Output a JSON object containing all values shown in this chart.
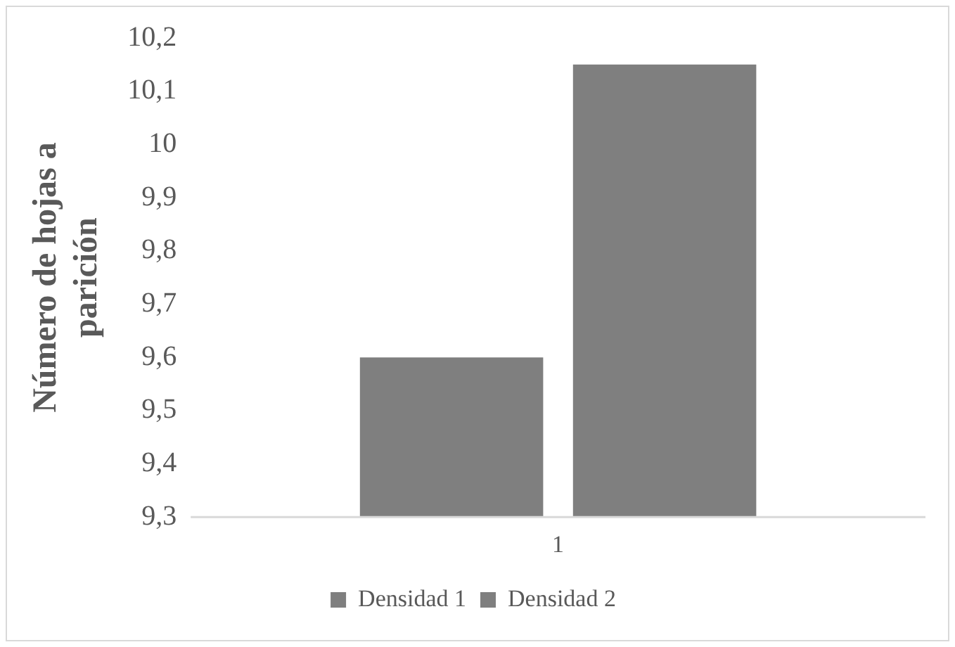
{
  "chart_data": {
    "type": "bar",
    "ylabel": "Número de hojas a parición",
    "categories": [
      "1"
    ],
    "series": [
      {
        "name": "Densidad 1",
        "color": "#7f7f7f",
        "values": [
          9.6
        ]
      },
      {
        "name": "Densidad 2",
        "color": "#7f7f7f",
        "values": [
          10.15
        ]
      }
    ],
    "ylim": [
      9.3,
      10.2
    ],
    "yticks": [
      {
        "value": 9.3,
        "label": "9,3"
      },
      {
        "value": 9.4,
        "label": "9,4"
      },
      {
        "value": 9.5,
        "label": "9,5"
      },
      {
        "value": 9.6,
        "label": "9,6"
      },
      {
        "value": 9.7,
        "label": "9,7"
      },
      {
        "value": 9.8,
        "label": "9,8"
      },
      {
        "value": 9.9,
        "label": "9,9"
      },
      {
        "value": 10,
        "label": "10"
      },
      {
        "value": 10.1,
        "label": "10,1"
      },
      {
        "value": 10.2,
        "label": "10,2"
      }
    ],
    "grid": false,
    "legend": "bottom"
  }
}
